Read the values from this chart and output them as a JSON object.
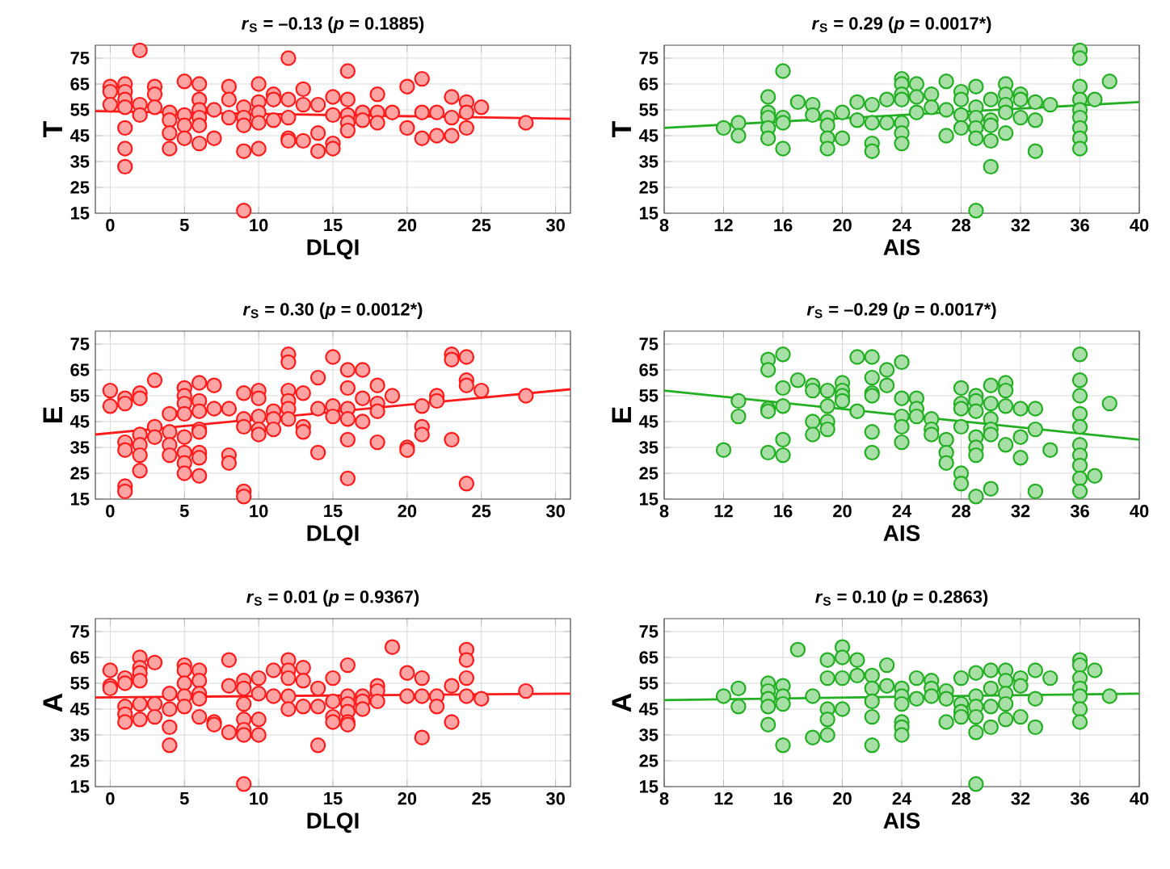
{
  "chart_data": [
    {
      "type": "scatter",
      "title": "*r*$_{S}$ = –0.13 (*p* = 0.1885)",
      "xlabel": "DLQI",
      "ylabel": "T",
      "xlim": [
        -1,
        31
      ],
      "xticks": [
        0,
        5,
        10,
        15,
        20,
        25,
        30
      ],
      "ylim": [
        15,
        80
      ],
      "yticks": [
        15,
        25,
        35,
        45,
        55,
        65,
        75
      ],
      "grid": true,
      "series": [
        {
          "color": "#ff1a1a",
          "marker": "circle",
          "x": [
            0,
            0,
            0,
            1,
            1,
            1,
            1,
            1,
            1,
            1,
            2,
            2,
            2,
            3,
            3,
            3,
            4,
            4,
            4,
            4,
            5,
            5,
            5,
            5,
            6,
            6,
            6,
            6,
            6,
            6,
            7,
            7,
            8,
            8,
            8,
            9,
            9,
            9,
            9,
            9,
            10,
            10,
            10,
            10,
            10,
            11,
            11,
            11,
            12,
            12,
            12,
            12,
            12,
            13,
            13,
            13,
            14,
            14,
            14,
            15,
            15,
            15,
            15,
            16,
            16,
            16,
            16,
            16,
            17,
            17,
            18,
            18,
            18,
            19,
            20,
            20,
            21,
            21,
            21,
            22,
            22,
            23,
            23,
            23,
            24,
            24,
            24,
            25,
            28
          ],
          "values": [
            64,
            62,
            57,
            65,
            62,
            59,
            56,
            48,
            40,
            33,
            78,
            57,
            53,
            64,
            61,
            56,
            54,
            51,
            46,
            40,
            66,
            53,
            49,
            44,
            65,
            59,
            55,
            52,
            49,
            42,
            55,
            44,
            64,
            59,
            52,
            56,
            52,
            49,
            39,
            16,
            65,
            58,
            54,
            50,
            40,
            61,
            59,
            51,
            75,
            59,
            52,
            44,
            43,
            63,
            57,
            43,
            57,
            46,
            39,
            60,
            53,
            42,
            40,
            70,
            59,
            53,
            50,
            47,
            54,
            51,
            61,
            54,
            50,
            54,
            64,
            48,
            67,
            54,
            44,
            54,
            45,
            60,
            52,
            45,
            58,
            54,
            48,
            56,
            50
          ]
        },
        {
          "type": "line",
          "color": "#ff1a1a",
          "x": [
            -1,
            31
          ],
          "values": [
            54.5,
            51.5
          ]
        }
      ]
    },
    {
      "type": "scatter",
      "title": "*r*$_{S}$ = 0.29 (*p* = 0.0017*)",
      "xlabel": "AIS",
      "ylabel": "T",
      "xlim": [
        8,
        40
      ],
      "xticks": [
        8,
        12,
        16,
        20,
        24,
        28,
        32,
        36,
        40
      ],
      "ylim": [
        15,
        80
      ],
      "yticks": [
        15,
        25,
        35,
        45,
        55,
        65,
        75
      ],
      "grid": true,
      "series": [
        {
          "color": "#22b022",
          "marker": "circle",
          "x": [
            12,
            13,
            13,
            15,
            15,
            15,
            15,
            15,
            16,
            16,
            16,
            16,
            17,
            18,
            18,
            19,
            19,
            19,
            19,
            20,
            20,
            21,
            21,
            22,
            22,
            22,
            22,
            23,
            23,
            24,
            24,
            24,
            24,
            24,
            24,
            24,
            25,
            25,
            25,
            26,
            26,
            27,
            27,
            27,
            28,
            28,
            28,
            28,
            29,
            29,
            29,
            29,
            29,
            29,
            30,
            30,
            30,
            30,
            30,
            31,
            31,
            31,
            31,
            31,
            32,
            32,
            32,
            33,
            33,
            33,
            34,
            36,
            36,
            36,
            36,
            36,
            36,
            36,
            36,
            36,
            37,
            38
          ],
          "values": [
            48,
            50,
            45,
            60,
            54,
            52,
            48,
            44,
            70,
            52,
            50,
            40,
            58,
            57,
            53,
            52,
            49,
            44,
            40,
            54,
            44,
            58,
            51,
            57,
            50,
            42,
            39,
            59,
            50,
            67,
            65,
            61,
            59,
            50,
            46,
            42,
            65,
            60,
            54,
            61,
            56,
            66,
            55,
            45,
            62,
            59,
            53,
            48,
            64,
            56,
            52,
            48,
            44,
            16,
            59,
            51,
            49,
            43,
            33,
            65,
            61,
            57,
            54,
            46,
            61,
            59,
            52,
            58,
            51,
            39,
            57,
            78,
            75,
            64,
            59,
            55,
            52,
            48,
            44,
            40,
            59,
            66
          ]
        },
        {
          "type": "line",
          "color": "#22b022",
          "x": [
            8,
            40
          ],
          "values": [
            48,
            58
          ]
        }
      ]
    },
    {
      "type": "scatter",
      "title": "*r*$_{S}$ = 0.30 (*p* = 0.0012*)",
      "xlabel": "DLQI",
      "ylabel": "E",
      "xlim": [
        -1,
        31
      ],
      "xticks": [
        0,
        5,
        10,
        15,
        20,
        25,
        30
      ],
      "ylim": [
        15,
        80
      ],
      "yticks": [
        15,
        25,
        35,
        45,
        55,
        65,
        75
      ],
      "grid": true,
      "series": [
        {
          "color": "#ff1a1a",
          "marker": "circle",
          "x": [
            0,
            0,
            1,
            1,
            1,
            1,
            1,
            1,
            2,
            2,
            2,
            2,
            2,
            2,
            3,
            3,
            3,
            4,
            4,
            4,
            4,
            5,
            5,
            5,
            5,
            5,
            5,
            5,
            5,
            6,
            6,
            6,
            6,
            6,
            6,
            6,
            6,
            7,
            7,
            8,
            8,
            8,
            9,
            9,
            9,
            9,
            9,
            10,
            10,
            10,
            10,
            10,
            11,
            11,
            11,
            12,
            12,
            12,
            12,
            12,
            12,
            13,
            13,
            13,
            14,
            14,
            14,
            15,
            15,
            15,
            16,
            16,
            16,
            16,
            16,
            16,
            17,
            17,
            17,
            18,
            18,
            18,
            18,
            19,
            20,
            20,
            21,
            21,
            21,
            22,
            22,
            23,
            23,
            23,
            24,
            24,
            24,
            24,
            25,
            28
          ],
          "values": [
            57,
            51,
            54,
            52,
            37,
            34,
            20,
            18,
            56,
            54,
            40,
            36,
            32,
            26,
            61,
            43,
            39,
            48,
            41,
            36,
            32,
            58,
            55,
            52,
            48,
            39,
            33,
            29,
            25,
            60,
            53,
            49,
            42,
            41,
            33,
            31,
            24,
            59,
            50,
            50,
            32,
            29,
            56,
            46,
            43,
            18,
            16,
            57,
            54,
            47,
            42,
            40,
            49,
            46,
            42,
            71,
            68,
            57,
            53,
            50,
            46,
            56,
            43,
            41,
            62,
            50,
            33,
            70,
            51,
            47,
            65,
            58,
            50,
            46,
            38,
            23,
            65,
            54,
            45,
            59,
            52,
            49,
            37,
            55,
            35,
            34,
            51,
            43,
            40,
            55,
            53,
            71,
            69,
            38,
            70,
            61,
            59,
            21,
            57,
            55
          ]
        },
        {
          "type": "line",
          "color": "#ff1a1a",
          "x": [
            -1,
            31
          ],
          "values": [
            40,
            57.5
          ]
        }
      ]
    },
    {
      "type": "scatter",
      "title": "*r*$_{S}$ = –0.29 (*p* = 0.0017*)",
      "xlabel": "AIS",
      "ylabel": "E",
      "xlim": [
        8,
        40
      ],
      "xticks": [
        8,
        12,
        16,
        20,
        24,
        28,
        32,
        36,
        40
      ],
      "ylim": [
        15,
        80
      ],
      "yticks": [
        15,
        25,
        35,
        45,
        55,
        65,
        75
      ],
      "grid": true,
      "series": [
        {
          "color": "#22b022",
          "marker": "circle",
          "x": [
            12,
            13,
            13,
            15,
            15,
            15,
            15,
            15,
            16,
            16,
            16,
            16,
            16,
            17,
            18,
            18,
            18,
            18,
            19,
            19,
            19,
            19,
            20,
            20,
            20,
            20,
            21,
            21,
            22,
            22,
            22,
            22,
            22,
            22,
            23,
            23,
            24,
            24,
            24,
            24,
            24,
            25,
            25,
            25,
            26,
            26,
            26,
            27,
            27,
            27,
            28,
            28,
            28,
            28,
            28,
            28,
            29,
            29,
            29,
            29,
            29,
            29,
            29,
            30,
            30,
            30,
            30,
            30,
            30,
            31,
            31,
            31,
            31,
            32,
            32,
            32,
            33,
            33,
            33,
            34,
            36,
            36,
            36,
            36,
            36,
            36,
            36,
            36,
            36,
            36,
            37,
            38
          ],
          "values": [
            34,
            53,
            47,
            69,
            65,
            50,
            49,
            33,
            71,
            58,
            51,
            38,
            32,
            61,
            59,
            57,
            45,
            40,
            57,
            51,
            45,
            42,
            60,
            57,
            55,
            53,
            49,
            70,
            70,
            62,
            56,
            55,
            41,
            33,
            65,
            59,
            68,
            54,
            47,
            43,
            37,
            54,
            50,
            47,
            46,
            42,
            40,
            38,
            33,
            29,
            58,
            52,
            50,
            43,
            25,
            21,
            55,
            53,
            49,
            39,
            35,
            32,
            16,
            59,
            52,
            46,
            42,
            40,
            19,
            60,
            57,
            51,
            36,
            50,
            39,
            31,
            50,
            42,
            18,
            34,
            71,
            61,
            55,
            48,
            43,
            36,
            32,
            28,
            23,
            18,
            24,
            52
          ]
        },
        {
          "type": "line",
          "color": "#22b022",
          "x": [
            8,
            40
          ],
          "values": [
            57,
            38
          ]
        }
      ]
    },
    {
      "type": "scatter",
      "title": "*r*$_{S}$ = 0.01 (*p* = 0.9367)",
      "xlabel": "DLQI",
      "ylabel": "A",
      "xlim": [
        -1,
        31
      ],
      "xticks": [
        0,
        5,
        10,
        15,
        20,
        25,
        30
      ],
      "ylim": [
        15,
        80
      ],
      "yticks": [
        15,
        25,
        35,
        45,
        55,
        65,
        75
      ],
      "grid": true,
      "series": [
        {
          "color": "#ff1a1a",
          "marker": "circle",
          "x": [
            0,
            0,
            0,
            1,
            1,
            1,
            1,
            1,
            2,
            2,
            2,
            2,
            2,
            2,
            3,
            3,
            3,
            4,
            4,
            4,
            4,
            5,
            5,
            5,
            5,
            5,
            6,
            6,
            6,
            6,
            6,
            7,
            7,
            8,
            8,
            8,
            9,
            9,
            9,
            9,
            9,
            9,
            9,
            10,
            10,
            10,
            10,
            11,
            11,
            12,
            12,
            12,
            12,
            12,
            13,
            13,
            13,
            14,
            14,
            14,
            15,
            15,
            15,
            15,
            16,
            16,
            16,
            16,
            16,
            16,
            17,
            17,
            17,
            18,
            18,
            18,
            19,
            20,
            20,
            21,
            21,
            21,
            22,
            22,
            23,
            23,
            24,
            24,
            24,
            24,
            25,
            28
          ],
          "values": [
            60,
            54,
            53,
            57,
            55,
            46,
            43,
            40,
            65,
            61,
            59,
            56,
            47,
            41,
            63,
            47,
            42,
            51,
            45,
            38,
            31,
            62,
            60,
            55,
            50,
            46,
            60,
            56,
            51,
            49,
            42,
            40,
            39,
            64,
            54,
            36,
            56,
            53,
            47,
            41,
            37,
            35,
            16,
            57,
            51,
            41,
            35,
            60,
            50,
            64,
            60,
            57,
            50,
            45,
            61,
            56,
            46,
            53,
            46,
            31,
            57,
            48,
            42,
            40,
            62,
            50,
            47,
            44,
            40,
            39,
            50,
            48,
            45,
            54,
            52,
            48,
            69,
            59,
            50,
            57,
            50,
            34,
            50,
            46,
            54,
            40,
            68,
            64,
            57,
            50,
            49,
            52
          ]
        },
        {
          "type": "line",
          "color": "#ff1a1a",
          "x": [
            -1,
            31
          ],
          "values": [
            49.5,
            51
          ]
        }
      ]
    },
    {
      "type": "scatter",
      "title": "*r*$_{S}$ = 0.10 (*p* = 0.2863)",
      "xlabel": "AIS",
      "ylabel": "A",
      "xlim": [
        8,
        40
      ],
      "xticks": [
        8,
        12,
        16,
        20,
        24,
        28,
        32,
        36,
        40
      ],
      "ylim": [
        15,
        80
      ],
      "yticks": [
        15,
        25,
        35,
        45,
        55,
        65,
        75
      ],
      "grid": true,
      "series": [
        {
          "color": "#22b022",
          "marker": "circle",
          "x": [
            12,
            13,
            13,
            15,
            15,
            15,
            15,
            15,
            16,
            16,
            16,
            16,
            17,
            18,
            18,
            19,
            19,
            19,
            19,
            19,
            20,
            20,
            20,
            20,
            21,
            21,
            22,
            22,
            22,
            22,
            22,
            23,
            23,
            24,
            24,
            24,
            24,
            24,
            24,
            25,
            25,
            26,
            26,
            26,
            27,
            27,
            27,
            28,
            28,
            28,
            28,
            29,
            29,
            29,
            29,
            29,
            29,
            30,
            30,
            30,
            30,
            31,
            31,
            31,
            31,
            31,
            32,
            32,
            32,
            33,
            33,
            33,
            34,
            36,
            36,
            36,
            36,
            36,
            36,
            36,
            37,
            38
          ],
          "values": [
            50,
            53,
            46,
            55,
            52,
            49,
            46,
            39,
            54,
            50,
            47,
            31,
            68,
            50,
            34,
            64,
            57,
            45,
            41,
            35,
            69,
            65,
            57,
            45,
            64,
            58,
            58,
            53,
            48,
            42,
            31,
            62,
            54,
            53,
            50,
            47,
            40,
            38,
            35,
            57,
            49,
            56,
            53,
            50,
            52,
            49,
            40,
            57,
            47,
            44,
            42,
            59,
            50,
            46,
            42,
            36,
            16,
            60,
            53,
            46,
            38,
            60,
            56,
            51,
            47,
            41,
            57,
            54,
            42,
            60,
            49,
            38,
            57,
            64,
            62,
            57,
            53,
            50,
            45,
            40,
            60,
            50
          ]
        },
        {
          "type": "line",
          "color": "#22b022",
          "x": [
            8,
            40
          ],
          "values": [
            48.5,
            51
          ]
        }
      ]
    }
  ]
}
